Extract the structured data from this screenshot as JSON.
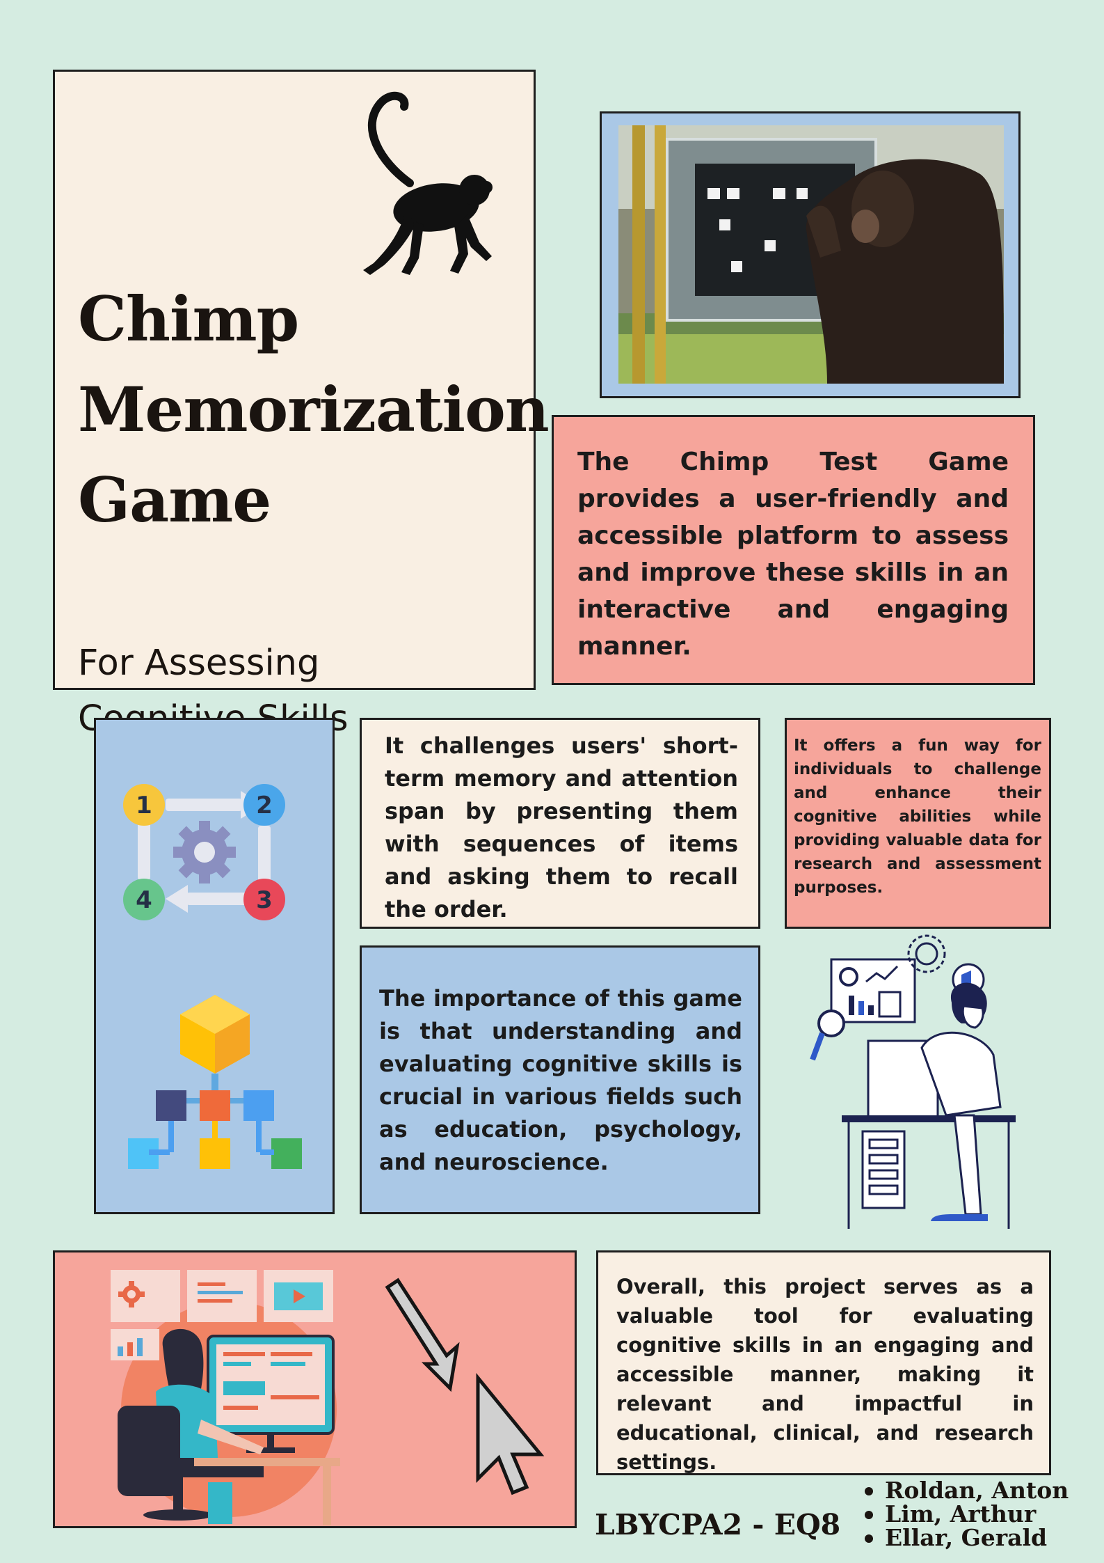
{
  "title": {
    "line1": "Chimp",
    "line2": "Memorization",
    "line3": "Game"
  },
  "subtitle": {
    "line1": "For Assessing",
    "line2": "Cognitive Skills"
  },
  "paragraphs": {
    "intro": "The Chimp Test Game provides a user-friendly and accessible platform to assess and improve these skills in an interactive and engaging manner.",
    "challenge": "It challenges users' short-term memory and attention span by presenting them with sequences of items and asking them to recall the order.",
    "offers": "It offers a fun way for individuals to challenge and enhance their cognitive abilities while providing valuable data for research and assessment purposes.",
    "importance": "The importance of this game is that understanding and evaluating cognitive skills is crucial in various fields such as education, psychology, and neuroscience.",
    "overall": "Overall, this project serves as a valuable tool for evaluating cognitive skills in an engaging and accessible manner, making it relevant and impactful in educational, clinical, and research settings."
  },
  "cycle_steps": [
    "1",
    "2",
    "3",
    "4"
  ],
  "footer": {
    "course_code": "LBYCPA2 - EQ8",
    "authors": [
      "Roldan, Anton",
      "Lim, Arthur",
      "Ellar, Gerald"
    ]
  },
  "icons": {
    "monkey": "monkey-silhouette-icon",
    "photo": "chimp-touchscreen-photo",
    "cycle": "numbered-cycle-icon",
    "hierarchy": "hierarchy-icon",
    "analyst": "person-at-computer-illustration",
    "developer": "developer-illustration",
    "cursor": "pixel-cursor-icon"
  },
  "colors": {
    "background": "#d5ece1",
    "cream": "#f9efe3",
    "pink": "#f6a59b",
    "blue": "#aac8e6"
  }
}
